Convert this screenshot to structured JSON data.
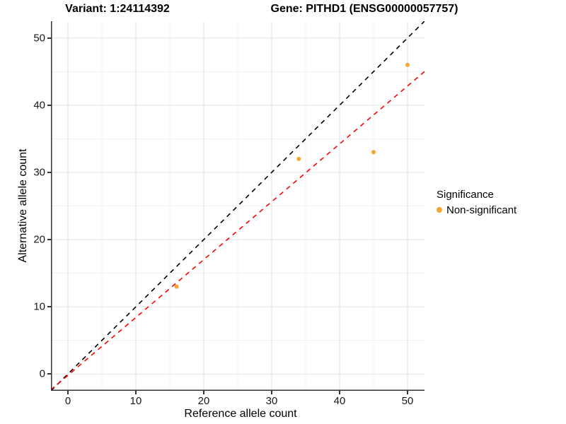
{
  "titles": {
    "variant": "Variant: 1:24114392",
    "gene": "Gene: PITHD1 (ENSG00000057757)"
  },
  "axes": {
    "x": {
      "label": "Reference allele count",
      "major_ticks": [
        0,
        10,
        20,
        30,
        40,
        50
      ],
      "minor_ticks": [
        5,
        15,
        25,
        35,
        45
      ]
    },
    "y": {
      "label": "Alternative allele count",
      "major_ticks": [
        0,
        10,
        20,
        30,
        40,
        50
      ],
      "minor_ticks": [
        5,
        15,
        25,
        35,
        45
      ]
    }
  },
  "legend": {
    "title": "Significance",
    "items": [
      {
        "label": "Non-significant",
        "color": "#F9A432"
      }
    ]
  },
  "colors": {
    "point": "#F9A432",
    "identity_line": "#000000",
    "fit_line": "#FF0000",
    "axis_line": "#333333",
    "major_grid": "#E3E3E3",
    "minor_grid": "#F1F1F1"
  },
  "chart_data": {
    "type": "scatter",
    "title": "Variant: 1:24114392 — Gene: PITHD1 (ENSG00000057757)",
    "xlabel": "Reference allele count",
    "ylabel": "Alternative allele count",
    "xlim": [
      -2.5,
      52.5
    ],
    "ylim": [
      -2.5,
      52.5
    ],
    "x_major_ticks": [
      0,
      10,
      20,
      30,
      40,
      50
    ],
    "y_major_ticks": [
      0,
      10,
      20,
      30,
      40,
      50
    ],
    "x_minor_ticks": [
      5,
      15,
      25,
      35,
      45
    ],
    "y_minor_ticks": [
      5,
      15,
      25,
      35,
      45
    ],
    "grid": true,
    "legend_position": "right",
    "series": [
      {
        "name": "Non-significant",
        "color": "#F9A432",
        "points": [
          [
            16,
            13
          ],
          [
            34,
            32
          ],
          [
            45,
            33
          ],
          [
            50,
            46
          ]
        ]
      }
    ],
    "lines": [
      {
        "name": "identity",
        "slope": 1.0,
        "intercept": 0.0,
        "color": "#000000",
        "style": "dashed"
      },
      {
        "name": "fit",
        "slope": 0.861,
        "intercept": -0.2,
        "color": "#FF0000",
        "style": "dashed"
      }
    ]
  }
}
